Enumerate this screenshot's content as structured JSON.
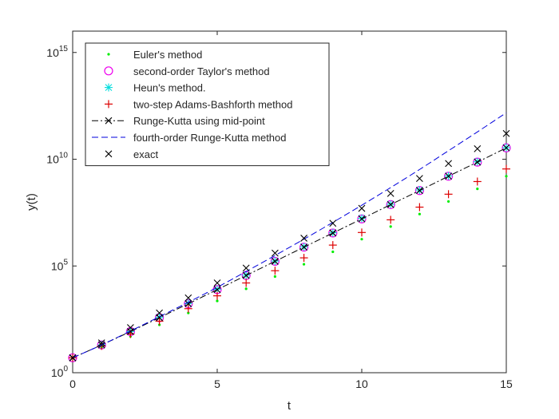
{
  "chart_data": {
    "type": "scatter",
    "xlabel": "t",
    "ylabel": "y(t)",
    "xlim": [
      0,
      15
    ],
    "ylim": [
      1,
      1e+16
    ],
    "y_scale": "log",
    "grid": false,
    "legend_position": "top-left",
    "x_ticks": [
      "0",
      "5",
      "10",
      "15"
    ],
    "y_ticks": [
      {
        "base": "10",
        "exp": "0"
      },
      {
        "base": "10",
        "exp": "5"
      },
      {
        "base": "10",
        "exp": "10"
      },
      {
        "base": "10",
        "exp": "15"
      }
    ],
    "t": [
      0,
      1,
      2,
      3,
      4,
      5,
      6,
      7,
      8,
      9,
      10,
      11,
      12,
      13,
      14,
      15
    ],
    "series": [
      {
        "name": "Euler's method",
        "marker": "dot",
        "line": "none",
        "color": "#00ee00",
        "values": [
          5,
          15,
          50,
          175,
          630,
          2300,
          8500,
          32000,
          120000,
          460000,
          1800000,
          7000000,
          27000000,
          105000000,
          410000000,
          1600000000
        ]
      },
      {
        "name": "second-order Taylor's method",
        "marker": "circle",
        "line": "none",
        "color": "#ee00ee",
        "values": [
          5,
          20,
          85,
          380,
          1700,
          7800,
          36000,
          165000,
          760000,
          3500000,
          16000000,
          75000000,
          340000000,
          1600000000,
          7300000000,
          34000000000
        ]
      },
      {
        "name": "Heun's method.",
        "marker": "star",
        "line": "none",
        "color": "#00dddd",
        "values": [
          5,
          20,
          85,
          390,
          1750,
          8000,
          37000,
          170000,
          790000,
          3600000,
          17000000,
          78000000,
          360000000,
          1650000000,
          7600000000,
          35000000000
        ]
      },
      {
        "name": "two-step Adams-Bashforth method",
        "marker": "plus",
        "line": "none",
        "color": "#dd0000",
        "values": [
          5,
          18,
          65,
          260,
          1000,
          4000,
          16000,
          60000,
          240000,
          950000,
          3700000,
          14500000,
          57000000,
          230000000,
          900000000,
          3500000000
        ]
      },
      {
        "name": "Runge-Kutta using mid-point",
        "marker": "x",
        "line": "dashdot",
        "color": "#000000",
        "values": [
          5,
          20,
          85,
          380,
          1700,
          7800,
          36000,
          165000,
          760000,
          3500000,
          16000000,
          75000000,
          340000000,
          1600000000,
          7300000000,
          34000000000
        ]
      },
      {
        "name": "fourth-order Runge-Kutta method",
        "marker": "none",
        "line": "dashed",
        "color": "#0000dd",
        "values": [
          5,
          20,
          90,
          420,
          2000,
          10000,
          55000,
          310000,
          1800000,
          11000000,
          70000000,
          470000000,
          3300000000,
          25000000000,
          190000000000,
          1500000000000
        ]
      },
      {
        "name": "exact",
        "marker": "x",
        "line": "none",
        "color": "#000000",
        "values": [
          5,
          25,
          130,
          630,
          3200,
          16000,
          80000,
          400000,
          2000000,
          10000000,
          50000000,
          250000000,
          1250000000,
          6300000000,
          31000000000,
          160000000000
        ]
      }
    ]
  }
}
